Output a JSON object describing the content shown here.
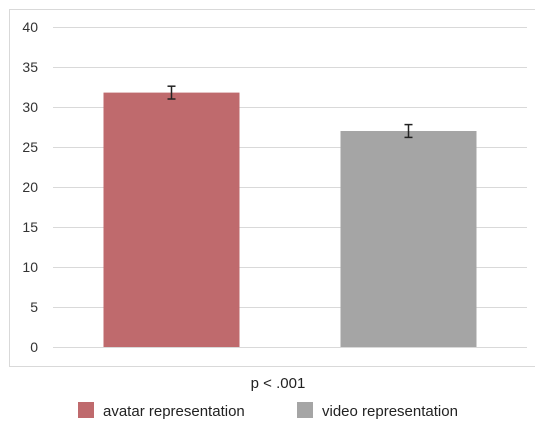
{
  "chart_data": {
    "type": "bar",
    "categories": [
      "avatar representation",
      "video representation"
    ],
    "values": [
      31.8,
      27.0
    ],
    "error": [
      0.8,
      0.8
    ],
    "colors": [
      "#bf6a6d",
      "#a5a5a5"
    ],
    "ylim": [
      0,
      40
    ],
    "yticks": [
      "0",
      "5",
      "10",
      "15",
      "20",
      "25",
      "30",
      "35",
      "40"
    ],
    "annotation": "p < .001",
    "legend": [
      "avatar representation",
      "video representation"
    ],
    "legend_position": "bottom",
    "grid": true
  }
}
